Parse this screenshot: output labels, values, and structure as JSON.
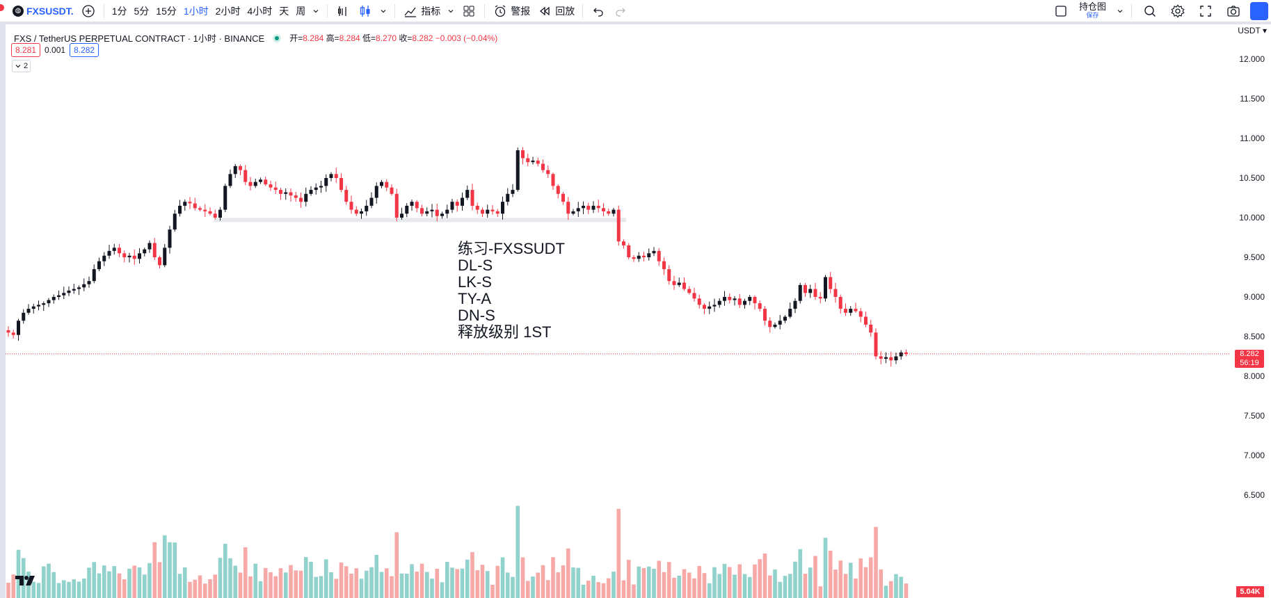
{
  "toolbar": {
    "symbol": "FXSUSDT.",
    "intervals": [
      "1分",
      "5分",
      "15分",
      "1小时",
      "2小时",
      "4小时",
      "天",
      "周"
    ],
    "active_interval": "1小时",
    "indicators_label": "指标",
    "alert_label": "警报",
    "replay_label": "回放",
    "layout_label": "持仓图",
    "layout_sub": "保存"
  },
  "legend": {
    "title": "FXS / TetherUS PERPETUAL CONTRACT · 1小时 · BINANCE",
    "open_label": "开=",
    "open": "8.284",
    "high_label": "高=",
    "high": "8.284",
    "low_label": "低=",
    "low": "8.270",
    "close_label": "收=",
    "close": "8.282",
    "change": "−0.003 (−0.04%)",
    "bid": "8.281",
    "spread": "0.001",
    "ask": "8.282",
    "collapse_count": "2"
  },
  "annotation": [
    "练习-FXSSUDT",
    "DL-S",
    "LK-S",
    "TY-A",
    "DN-S",
    "释放级别 1ST"
  ],
  "axis": {
    "currency": "USDT",
    "price_ticks": [
      "12.000",
      "11.500",
      "11.000",
      "10.500",
      "10.000",
      "9.500",
      "9.000",
      "8.500",
      "8.000",
      "7.500",
      "7.000",
      "6.500"
    ],
    "last_price": "8.282",
    "countdown": "56:19",
    "volume_label": "5.04K"
  },
  "colors": {
    "up": "#131722",
    "down": "#f23645",
    "vol_up": "#92d2cc",
    "vol_down": "#f7a9a7",
    "accent": "#2962ff"
  },
  "chart_data": {
    "type": "candlestick",
    "support_level": 9.97,
    "last_price": 8.282,
    "ylim": [
      6.5,
      12.0
    ],
    "close_series": [
      8.55,
      8.52,
      8.7,
      8.8,
      8.85,
      8.88,
      8.9,
      8.92,
      8.96,
      9.0,
      9.02,
      9.05,
      9.08,
      9.1,
      9.12,
      9.16,
      9.2,
      9.35,
      9.45,
      9.52,
      9.58,
      9.62,
      9.55,
      9.5,
      9.52,
      9.48,
      9.55,
      9.6,
      9.68,
      9.5,
      9.4,
      9.62,
      9.85,
      10.05,
      10.15,
      10.2,
      10.18,
      10.12,
      10.1,
      10.08,
      10.05,
      10.0,
      10.1,
      10.4,
      10.55,
      10.65,
      10.6,
      10.45,
      10.4,
      10.45,
      10.48,
      10.42,
      10.38,
      10.35,
      10.3,
      10.32,
      10.28,
      10.25,
      10.2,
      10.3,
      10.35,
      10.38,
      10.4,
      10.5,
      10.55,
      10.5,
      10.35,
      10.2,
      10.1,
      10.05,
      10.08,
      10.15,
      10.25,
      10.4,
      10.45,
      10.38,
      10.3,
      10.0,
      10.05,
      10.15,
      10.2,
      10.12,
      10.05,
      10.08,
      10.1,
      10.02,
      10.05,
      10.1,
      10.2,
      10.15,
      10.25,
      10.35,
      10.15,
      10.1,
      10.05,
      10.1,
      10.08,
      10.05,
      10.2,
      10.3,
      10.35,
      10.85,
      10.75,
      10.7,
      10.72,
      10.68,
      10.6,
      10.55,
      10.4,
      10.3,
      10.2,
      10.05,
      10.08,
      10.12,
      10.15,
      10.1,
      10.15,
      10.12,
      10.08,
      10.05,
      10.1,
      9.7,
      9.65,
      9.5,
      9.48,
      9.52,
      9.5,
      9.55,
      9.58,
      9.45,
      9.35,
      9.2,
      9.15,
      9.18,
      9.1,
      9.05,
      8.98,
      8.9,
      8.85,
      8.88,
      8.9,
      8.95,
      9.0,
      8.96,
      8.98,
      8.9,
      8.95,
      9.0,
      8.92,
      8.85,
      8.7,
      8.62,
      8.65,
      8.7,
      8.75,
      8.85,
      8.95,
      9.15,
      9.05,
      9.1,
      9.0,
      8.98,
      9.25,
      9.1,
      9.0,
      8.85,
      8.8,
      8.85,
      8.82,
      8.75,
      8.65,
      8.55,
      8.25,
      8.22,
      8.24,
      8.2,
      8.25,
      8.3,
      8.28
    ]
  }
}
